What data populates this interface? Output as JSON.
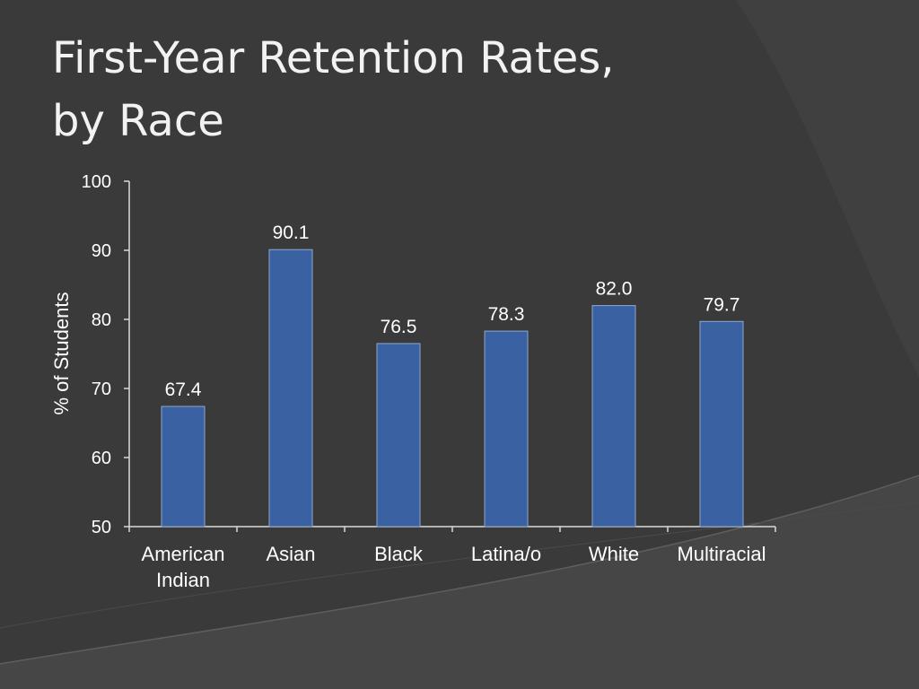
{
  "slide": {
    "title_line1": "First-Year Retention Rates,",
    "title_line2": "by Race"
  },
  "colors": {
    "background": "#3a3a3a",
    "bar": "#3a62a3",
    "text": "#ffffff",
    "axis": "#d9d9d9"
  },
  "chart_data": {
    "type": "bar",
    "title": "First-Year Retention Rates, by Race",
    "ylabel": "% of Students",
    "xlabel": "",
    "categories": [
      "American Indian",
      "Asian",
      "Black",
      "Latina/o",
      "White",
      "Multiracial"
    ],
    "category_lines": [
      [
        "American",
        "Indian"
      ],
      [
        "Asian"
      ],
      [
        "Black"
      ],
      [
        "Latina/o"
      ],
      [
        "White"
      ],
      [
        "Multiracial"
      ]
    ],
    "values": [
      67.4,
      90.1,
      76.5,
      78.3,
      82.0,
      79.7
    ],
    "data_labels": [
      "67.4",
      "90.1",
      "76.5",
      "78.3",
      "82.0",
      "79.7"
    ],
    "ylim": [
      50,
      100
    ],
    "yticks": [
      50,
      60,
      70,
      80,
      90,
      100
    ],
    "grid": false,
    "legend": "none"
  }
}
